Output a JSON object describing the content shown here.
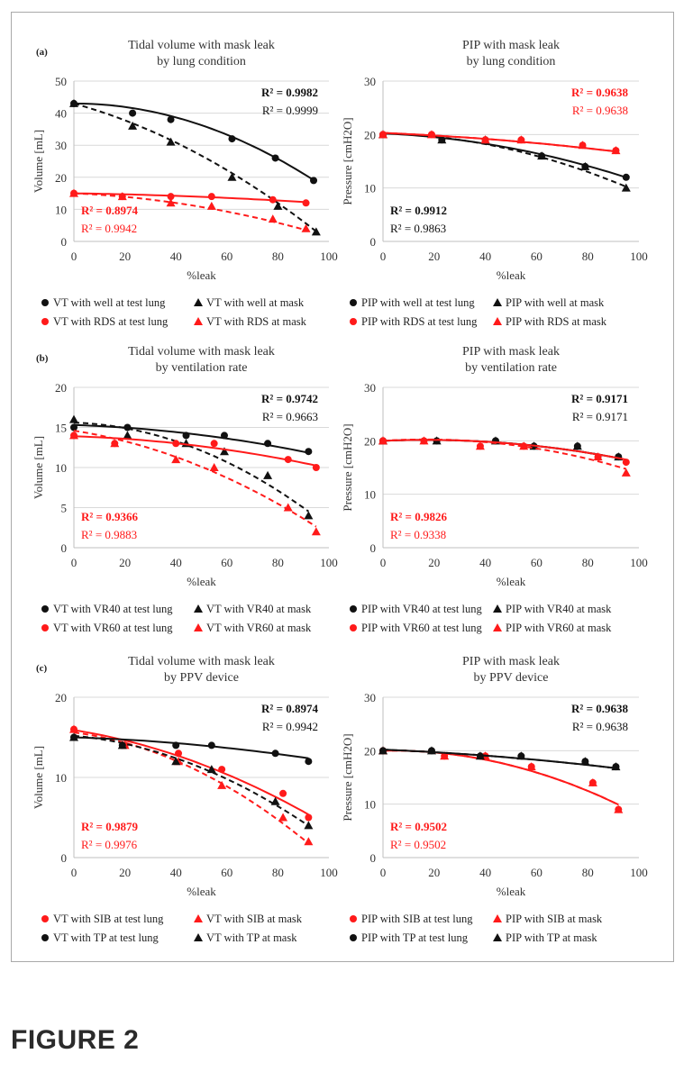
{
  "figure_caption": "FIGURE 2",
  "colors": {
    "black": "#111111",
    "red": "#ff1a1a",
    "grid": "#d9d9d9",
    "axis": "#bfbfbf",
    "text": "#222222"
  },
  "chart_data": [
    {
      "id": "a-vt",
      "panel_label": "(a)",
      "type": "scatter",
      "title": [
        "Tidal volume with mask leak",
        "by lung condition"
      ],
      "xlabel": "%leak",
      "ylabel": "Volume [mL]",
      "xlim": [
        0,
        100
      ],
      "ylim": [
        0,
        50
      ],
      "xticks": [
        "0",
        "20",
        "40",
        "60",
        "80",
        "100"
      ],
      "yticks": [
        "0",
        "10",
        "20",
        "30",
        "40",
        "50"
      ],
      "r2": [
        {
          "text": "R² = 0.9982",
          "color": "black",
          "bold": true
        },
        {
          "text": "R² = 0.9999",
          "color": "black",
          "bold": false
        }
      ],
      "r2_low": [
        {
          "text": "R² = 0.8974",
          "color": "red",
          "bold": true
        },
        {
          "text": "R² = 0.9942",
          "color": "red",
          "bold": false
        }
      ],
      "series": [
        {
          "name": "VT with well at test lung",
          "color": "black",
          "marker": "circle",
          "dash": false,
          "x": [
            0,
            23,
            38,
            62,
            79,
            94
          ],
          "y": [
            43,
            40,
            38,
            32,
            26,
            19
          ],
          "fit": [
            43,
            -0.0,
            -0.0027
          ]
        },
        {
          "name": "VT with well at mask",
          "color": "black",
          "marker": "triangle",
          "dash": true,
          "x": [
            0,
            23,
            38,
            62,
            80,
            95
          ],
          "y": [
            43,
            36,
            31,
            20,
            11,
            3
          ],
          "fit": [
            43,
            -0.22,
            -0.0021
          ]
        },
        {
          "name": "VT with RDS at test lung",
          "color": "red",
          "marker": "circle",
          "dash": false,
          "x": [
            0,
            19,
            38,
            54,
            78,
            91
          ],
          "y": [
            15,
            14,
            14,
            14,
            13,
            12
          ],
          "fit": [
            15,
            -0.012,
            -0.0002
          ]
        },
        {
          "name": "VT with RDS at mask",
          "color": "red",
          "marker": "triangle",
          "dash": true,
          "x": [
            0,
            19,
            38,
            54,
            78,
            91
          ],
          "y": [
            15,
            14,
            12,
            11,
            7,
            4
          ],
          "fit": [
            15,
            -0.035,
            -0.001
          ]
        }
      ],
      "legend": [
        [
          "VT with well at test lung",
          "VT with well at mask"
        ],
        [
          "VT with RDS at test lung",
          "VT with RDS at mask"
        ]
      ]
    },
    {
      "id": "a-pip",
      "panel_label": "",
      "type": "scatter",
      "title": [
        "PIP with mask leak",
        "by lung condition"
      ],
      "xlabel": "%leak",
      "ylabel": "Pressure [cmH2O]",
      "xlim": [
        0,
        100
      ],
      "ylim": [
        0,
        30
      ],
      "xticks": [
        "0",
        "20",
        "40",
        "60",
        "80",
        "100"
      ],
      "yticks": [
        "0",
        "10",
        "20",
        "30"
      ],
      "r2": [
        {
          "text": "R² = 0.9638",
          "color": "red",
          "bold": true
        },
        {
          "text": "R² = 0.9638",
          "color": "red",
          "bold": false
        }
      ],
      "r2_low": [
        {
          "text": "R² = 0.9912",
          "color": "black",
          "bold": true
        },
        {
          "text": "R² = 0.9863",
          "color": "black",
          "bold": false
        }
      ],
      "series": [
        {
          "name": "PIP with well at test lung",
          "color": "black",
          "marker": "circle",
          "dash": false,
          "x": [
            0,
            23,
            40,
            62,
            79,
            95
          ],
          "y": [
            20,
            19,
            19,
            16,
            14,
            12
          ],
          "fit": [
            20.2,
            -0.02,
            -0.0007
          ]
        },
        {
          "name": "PIP with well at mask",
          "color": "black",
          "marker": "triangle",
          "dash": true,
          "x": [
            0,
            23,
            40,
            62,
            79,
            95
          ],
          "y": [
            20,
            19,
            19,
            16,
            14,
            10
          ],
          "fit": [
            20.2,
            -0.01,
            -0.001
          ]
        },
        {
          "name": "PIP with RDS at test lung",
          "color": "red",
          "marker": "circle",
          "dash": false,
          "x": [
            0,
            19,
            40,
            54,
            78,
            91
          ],
          "y": [
            20,
            20,
            19,
            19,
            18,
            17
          ],
          "fit": [
            20.3,
            -0.02,
            -0.0002
          ]
        },
        {
          "name": "PIP with RDS at mask",
          "color": "red",
          "marker": "triangle",
          "dash": true,
          "x": [
            0,
            19,
            40,
            54,
            78,
            91
          ],
          "y": [
            20,
            20,
            19,
            19,
            18,
            17
          ],
          "fit": [
            20.3,
            -0.02,
            -0.0002
          ]
        }
      ],
      "legend": [
        [
          "PIP with well at test lung",
          "PIP with well at mask"
        ],
        [
          "PIP with RDS at test lung",
          "PIP with RDS at mask"
        ]
      ]
    },
    {
      "id": "b-vt",
      "panel_label": "(b)",
      "type": "scatter",
      "title": [
        "Tidal volume with mask leak",
        "by ventilation rate"
      ],
      "xlabel": "%leak",
      "ylabel": "Volume [mL]",
      "xlim": [
        0,
        100
      ],
      "ylim": [
        0,
        20
      ],
      "xticks": [
        "0",
        "20",
        "40",
        "60",
        "80",
        "100"
      ],
      "yticks": [
        "0",
        "5",
        "10",
        "15",
        "20"
      ],
      "r2": [
        {
          "text": "R² = 0.9742",
          "color": "black",
          "bold": true
        },
        {
          "text": "R² = 0.9663",
          "color": "black",
          "bold": false
        }
      ],
      "r2_low": [
        {
          "text": "R² = 0.9366",
          "color": "red",
          "bold": true
        },
        {
          "text": "R² = 0.9883",
          "color": "red",
          "bold": false
        }
      ],
      "series": [
        {
          "name": "VT with VR40 at test lung",
          "color": "black",
          "marker": "circle",
          "dash": false,
          "x": [
            0,
            21,
            44,
            59,
            76,
            92
          ],
          "y": [
            15,
            15,
            14,
            14,
            13,
            12
          ],
          "fit": [
            15.3,
            -0.01,
            -0.0003
          ]
        },
        {
          "name": "VT with VR40 at mask",
          "color": "black",
          "marker": "triangle",
          "dash": true,
          "x": [
            0,
            21,
            44,
            59,
            76,
            92
          ],
          "y": [
            16,
            14,
            13,
            12,
            9,
            4
          ],
          "fit": [
            15.6,
            -0.01,
            -0.0012
          ]
        },
        {
          "name": "VT with VR60 at test lung",
          "color": "red",
          "marker": "circle",
          "dash": false,
          "x": [
            0,
            16,
            40,
            55,
            84,
            95
          ],
          "y": [
            14,
            13,
            13,
            13,
            11,
            10
          ],
          "fit": [
            13.9,
            -0.01,
            -0.0003
          ]
        },
        {
          "name": "VT with VR60 at mask",
          "color": "red",
          "marker": "triangle",
          "dash": true,
          "x": [
            0,
            16,
            40,
            55,
            84,
            95
          ],
          "y": [
            14,
            13,
            11,
            10,
            5,
            2
          ],
          "fit": [
            14.6,
            -0.05,
            -0.0008
          ]
        }
      ],
      "legend": [
        [
          "VT with VR40 at test lung",
          "VT with VR40 at mask"
        ],
        [
          "VT with VR60 at test lung",
          "VT with VR60 at mask"
        ]
      ]
    },
    {
      "id": "b-pip",
      "panel_label": "",
      "type": "scatter",
      "title": [
        "PIP with mask leak",
        "by ventilation rate"
      ],
      "xlabel": "%leak",
      "ylabel": "Pressure [cmH2O]",
      "xlim": [
        0,
        100
      ],
      "ylim": [
        0,
        30
      ],
      "xticks": [
        "0",
        "20",
        "40",
        "60",
        "80",
        "100"
      ],
      "yticks": [
        "0",
        "10",
        "20",
        "30"
      ],
      "r2": [
        {
          "text": "R² = 0.9171",
          "color": "black",
          "bold": true
        },
        {
          "text": "R² = 0.9171",
          "color": "black",
          "bold": false
        }
      ],
      "r2_low": [
        {
          "text": "R² = 0.9826",
          "color": "red",
          "bold": true
        },
        {
          "text": "R² = 0.9338",
          "color": "red",
          "bold": false
        }
      ],
      "series": [
        {
          "name": "PIP with VR40 at test lung",
          "color": "black",
          "marker": "circle",
          "dash": false,
          "x": [
            0,
            21,
            44,
            59,
            76,
            92
          ],
          "y": [
            20,
            20,
            20,
            19,
            19,
            17
          ],
          "fit": [
            20,
            0.02,
            -0.0006
          ]
        },
        {
          "name": "PIP with VR40 at mask",
          "color": "black",
          "marker": "triangle",
          "dash": true,
          "x": [
            0,
            21,
            44,
            59,
            76,
            92
          ],
          "y": [
            20,
            20,
            20,
            19,
            19,
            17
          ],
          "fit": [
            20,
            0.02,
            -0.0006
          ]
        },
        {
          "name": "PIP with VR60 at test lung",
          "color": "red",
          "marker": "circle",
          "dash": false,
          "x": [
            0,
            16,
            38,
            55,
            84,
            95
          ],
          "y": [
            20,
            20,
            19,
            19,
            17,
            16
          ],
          "fit": [
            20,
            0.02,
            -0.0006
          ]
        },
        {
          "name": "PIP with VR60 at mask",
          "color": "red",
          "marker": "triangle",
          "dash": true,
          "x": [
            0,
            16,
            38,
            55,
            84,
            95
          ],
          "y": [
            20,
            20,
            19,
            19,
            17,
            14
          ],
          "fit": [
            20,
            0.03,
            -0.0009
          ]
        }
      ],
      "legend": [
        [
          "PIP with VR40 at test lung",
          "PIP with VR40 at mask"
        ],
        [
          "PIP with VR60 at test lung",
          "PIP with VR60 at mask"
        ]
      ]
    },
    {
      "id": "c-vt",
      "panel_label": "(c)",
      "type": "scatter",
      "title": [
        "Tidal volume with mask leak",
        "by PPV device"
      ],
      "xlabel": "%leak",
      "ylabel": "Volume [mL]",
      "xlim": [
        0,
        100
      ],
      "ylim": [
        0,
        20
      ],
      "xticks": [
        "0",
        "20",
        "40",
        "60",
        "80",
        "100"
      ],
      "yticks": [
        "0",
        "10",
        "20"
      ],
      "r2": [
        {
          "text": "R² = 0.8974",
          "color": "black",
          "bold": true
        },
        {
          "text": "R² = 0.9942",
          "color": "black",
          "bold": false
        }
      ],
      "r2_low": [
        {
          "text": "R² = 0.9879",
          "color": "red",
          "bold": true
        },
        {
          "text": "R² = 0.9976",
          "color": "red",
          "bold": false
        }
      ],
      "series": [
        {
          "name": "VT with SIB at test lung",
          "color": "red",
          "marker": "circle",
          "dash": false,
          "x": [
            0,
            20,
            41,
            58,
            82,
            92
          ],
          "y": [
            16,
            14,
            13,
            11,
            8,
            5
          ],
          "fit": [
            15.9,
            -0.05,
            -0.0007
          ]
        },
        {
          "name": "VT with SIB at mask",
          "color": "red",
          "marker": "triangle",
          "dash": true,
          "x": [
            0,
            20,
            41,
            58,
            82,
            92
          ],
          "y": [
            16,
            14,
            12,
            9,
            5,
            2
          ],
          "fit": [
            15.6,
            -0.04,
            -0.0012
          ]
        },
        {
          "name": "VT with TP at test lung",
          "color": "black",
          "marker": "circle",
          "dash": false,
          "x": [
            0,
            19,
            40,
            54,
            79,
            92
          ],
          "y": [
            15,
            14,
            14,
            14,
            13,
            12
          ],
          "fit": [
            15,
            -0.01,
            -0.0002
          ]
        },
        {
          "name": "VT with TP at mask",
          "color": "black",
          "marker": "triangle",
          "dash": true,
          "x": [
            0,
            19,
            40,
            54,
            79,
            92
          ],
          "y": [
            15,
            14,
            12,
            11,
            7,
            4
          ],
          "fit": [
            15.2,
            -0.03,
            -0.001
          ]
        }
      ],
      "legend": [
        [
          "VT with SIB at test lung",
          "VT with SIB at mask"
        ],
        [
          "VT with TP at test lung",
          "VT with TP at mask"
        ]
      ]
    },
    {
      "id": "c-pip",
      "panel_label": "",
      "type": "scatter",
      "title": [
        "PIP with mask leak",
        "by PPV device"
      ],
      "xlabel": "%leak",
      "ylabel": "Pressure [cmH2O]",
      "xlim": [
        0,
        100
      ],
      "ylim": [
        0,
        30
      ],
      "xticks": [
        "0",
        "20",
        "40",
        "60",
        "80",
        "100"
      ],
      "yticks": [
        "0",
        "10",
        "20",
        "30"
      ],
      "r2": [
        {
          "text": "R² = 0.9638",
          "color": "black",
          "bold": true
        },
        {
          "text": "R² = 0.9638",
          "color": "black",
          "bold": false
        }
      ],
      "r2_low": [
        {
          "text": "R² = 0.9502",
          "color": "red",
          "bold": true
        },
        {
          "text": "R² = 0.9502",
          "color": "red",
          "bold": false
        }
      ],
      "series": [
        {
          "name": "PIP with SIB at test lung",
          "color": "red",
          "marker": "circle",
          "dash": false,
          "x": [
            0,
            24,
            40,
            58,
            82,
            92
          ],
          "y": [
            20,
            19,
            19,
            17,
            14,
            9
          ],
          "fit": [
            20,
            0.01,
            -0.0013
          ]
        },
        {
          "name": "PIP with SIB at mask",
          "color": "red",
          "marker": "triangle",
          "dash": true,
          "x": [
            0,
            24,
            40,
            58,
            82,
            92
          ],
          "y": [
            20,
            19,
            19,
            17,
            14,
            9
          ],
          "fit": [
            20,
            0.01,
            -0.0013
          ]
        },
        {
          "name": "PIP with TP at test lung",
          "color": "black",
          "marker": "circle",
          "dash": false,
          "x": [
            0,
            19,
            38,
            54,
            79,
            91
          ],
          "y": [
            20,
            20,
            19,
            19,
            18,
            17
          ],
          "fit": [
            20.2,
            -0.02,
            -0.0002
          ]
        },
        {
          "name": "PIP with TP at mask",
          "color": "black",
          "marker": "triangle",
          "dash": true,
          "x": [
            0,
            19,
            38,
            54,
            79,
            91
          ],
          "y": [
            20,
            20,
            19,
            19,
            18,
            17
          ],
          "fit": [
            20.2,
            -0.02,
            -0.0002
          ]
        }
      ],
      "legend": [
        [
          "PIP with SIB at test lung",
          "PIP with SIB at mask"
        ],
        [
          "PIP with TP at test lung",
          "PIP with TP at mask"
        ]
      ]
    }
  ]
}
